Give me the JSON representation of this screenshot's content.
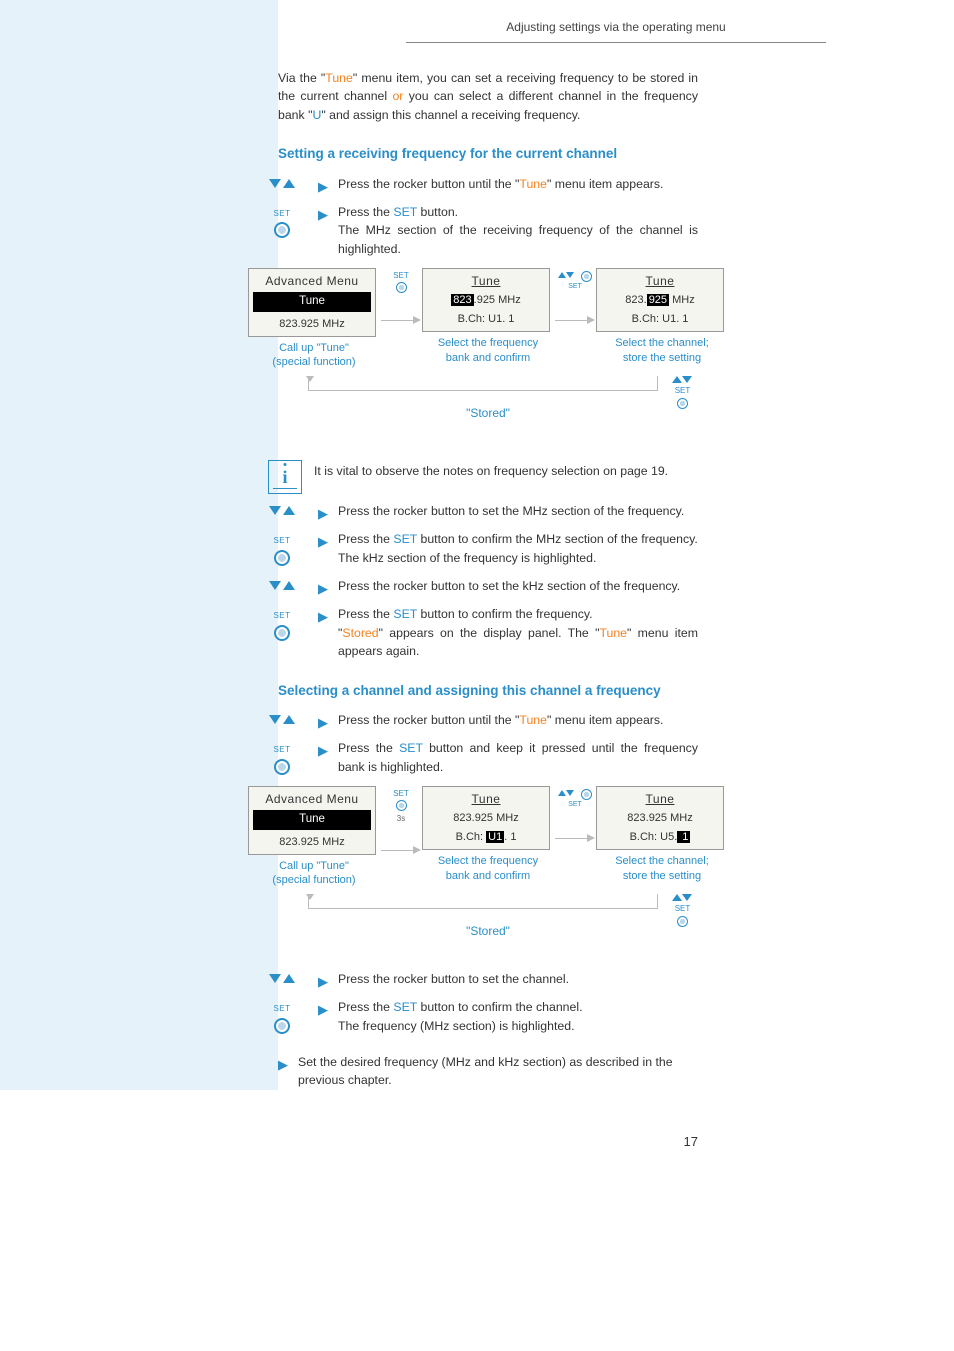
{
  "header": {
    "title": "Adjusting settings via the operating menu"
  },
  "intro": {
    "p1a": "Via the \"",
    "tune": "Tune",
    "p1b": "\" menu item, you can set a receiving frequency to be stored in the current channel ",
    "or": "or",
    "p1c": " you can select a different channel in the frequency bank \"",
    "u": "U",
    "p1d": "\" and assign this channel a receiving frequency."
  },
  "section1": {
    "heading": "Setting a receiving frequency for the current channel",
    "s1a": "Press the rocker button until the \"",
    "s1_tune": "Tune",
    "s1b": "\" menu item appears.",
    "s2a": "Press the ",
    "s2_set": "SET",
    "s2b": " button.",
    "s2c": "The MHz section of the receiving frequency of the channel is highlighted.",
    "diag": {
      "lcd1": {
        "title": "Advanced  Menu",
        "hl": "Tune",
        "line": "823.925 MHz",
        "cap1": "Call up \"Tune\"",
        "cap2": "(special function)"
      },
      "set_label": "SET",
      "lcd2": {
        "title": "Tune",
        "pre": "823",
        "suf": ".925 MHz",
        "bch": "B.Ch:  U1. 1",
        "cap1": "Select the frequency",
        "cap2": "bank and confirm"
      },
      "lcd3": {
        "title": "Tune",
        "pre": "823.",
        "hl": "925",
        "suf": " MHz",
        "bch": "B.Ch:  U1. 1",
        "cap1": "Select the channel;",
        "cap2": "store the setting"
      },
      "stored": "\"Stored\""
    },
    "note": "It is vital to observe the notes on frequency selection on page 19.",
    "s3": "Press the rocker button to set the MHz section of the frequency.",
    "s4a": "Press the ",
    "s4_set": "SET",
    "s4b": " button to confirm the MHz section of the frequency.",
    "s4c": "The kHz section of the frequency is highlighted.",
    "s5": "Press the rocker button to set the kHz section of the frequency.",
    "s6a": "Press the ",
    "s6_set": "SET",
    "s6b": " button to confirm the frequency.",
    "s6c1": "\"",
    "s6_stored": "Stored",
    "s6c2": "\" appears on the display panel. The \"",
    "s6_tune": "Tune",
    "s6c3": "\" menu item appears again."
  },
  "section2": {
    "heading": "Selecting a channel and assigning this channel a frequency",
    "s1a": "Press the rocker button until the \"",
    "s1_tune": "Tune",
    "s1b": "\" menu item appears.",
    "s2a": "Press the ",
    "s2_set": "SET",
    "s2b": " button and keep it pressed until the frequency bank is highlighted.",
    "hold": "3s",
    "diag": {
      "lcd1": {
        "title": "Advanced  Menu",
        "hl": "Tune",
        "line": "823.925 MHz",
        "cap1": "Call up \"Tune\"",
        "cap2": "(special function)"
      },
      "lcd2": {
        "title": "Tune",
        "line": "823.925 MHz",
        "pre": "B.Ch:  ",
        "hl": "U1",
        "suf": ". 1",
        "cap1": "Select the frequency",
        "cap2": "bank and confirm"
      },
      "lcd3": {
        "title": "Tune",
        "line": "823.925 MHz",
        "pre": "B.Ch:  U5.",
        "hl": " 1 ",
        "cap1": "Select the channel;",
        "cap2": "store the setting"
      },
      "stored": "\"Stored\""
    },
    "s3": "Press the rocker button to set the channel.",
    "s4a": "Press the ",
    "s4_set": "SET",
    "s4b": " button to confirm the channel.",
    "s4c": "The frequency (MHz section) is highlighted.",
    "s5": "Set the desired frequency (MHz and kHz section) as described in the previous chapter."
  },
  "page": "17",
  "labels": {
    "set": "SET"
  }
}
